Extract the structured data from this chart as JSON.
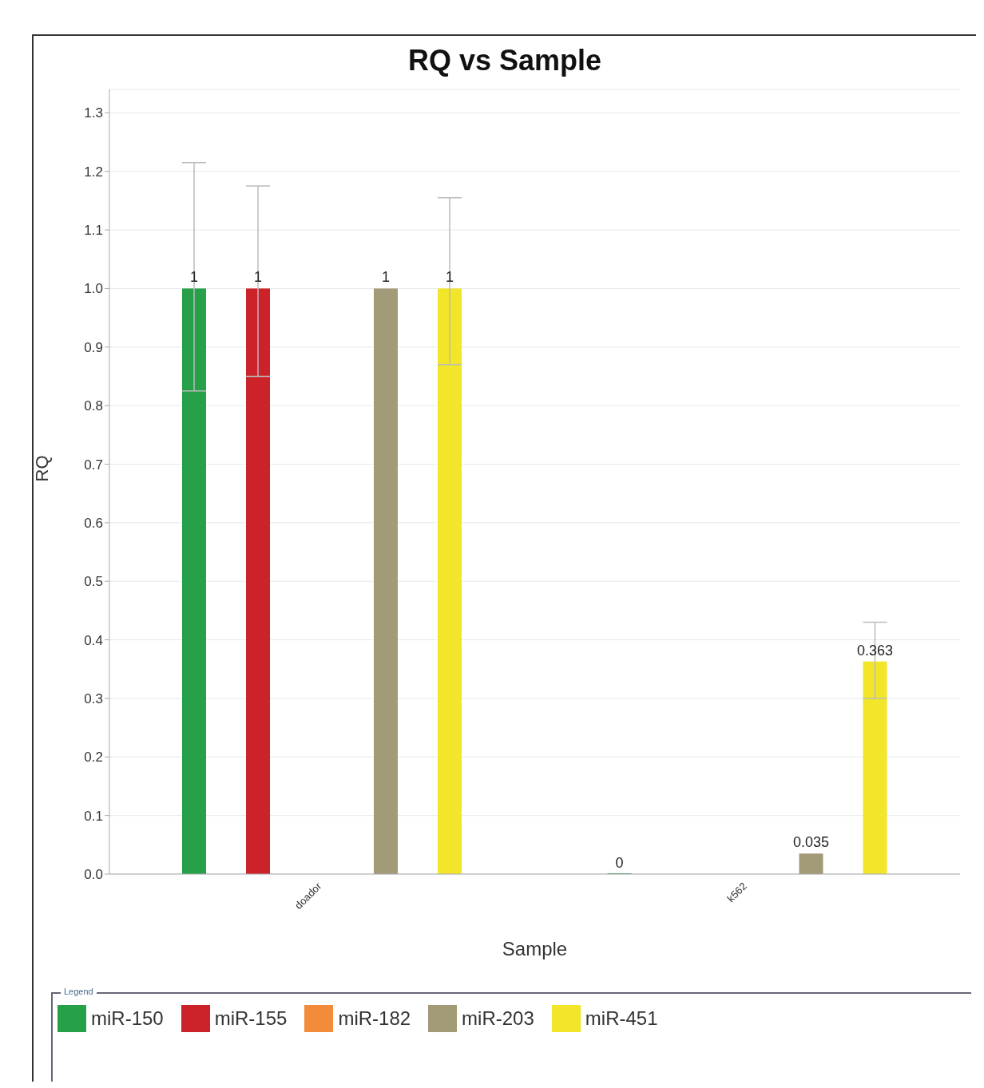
{
  "chart_data": {
    "type": "bar",
    "title": "RQ vs Sample",
    "xlabel": "Sample",
    "ylabel": "RQ",
    "legend_title": "Legend",
    "categories": [
      "doador",
      "k562"
    ],
    "series": [
      {
        "name": "miR-150",
        "color": "#27a04a",
        "values": [
          1,
          0
        ],
        "errors": [
          [
            0.825,
            1.215
          ],
          null
        ]
      },
      {
        "name": "miR-155",
        "color": "#cc2229",
        "values": [
          1,
          null
        ],
        "errors": [
          [
            0.85,
            1.175
          ],
          null
        ]
      },
      {
        "name": "miR-182",
        "color": "#f28c3a",
        "values": [
          null,
          null
        ]
      },
      {
        "name": "miR-203",
        "color": "#a39a78",
        "values": [
          1,
          0.035
        ]
      },
      {
        "name": "miR-451",
        "color": "#f2e52a",
        "values": [
          1,
          0.363
        ],
        "errors": [
          [
            0.87,
            1.155
          ],
          [
            0.3,
            0.43
          ]
        ]
      }
    ],
    "ylim": [
      0,
      1.34
    ],
    "yticks": [
      {
        "value": 0,
        "label": "0.0"
      },
      0.1,
      0.2,
      0.3,
      0.4,
      0.5,
      0.6,
      0.7,
      0.8,
      0.9,
      {
        "value": 1,
        "label": "1.0"
      },
      1.1,
      1.2,
      1.3
    ],
    "grid": "y",
    "legend": "bottom",
    "data_labels": true
  }
}
